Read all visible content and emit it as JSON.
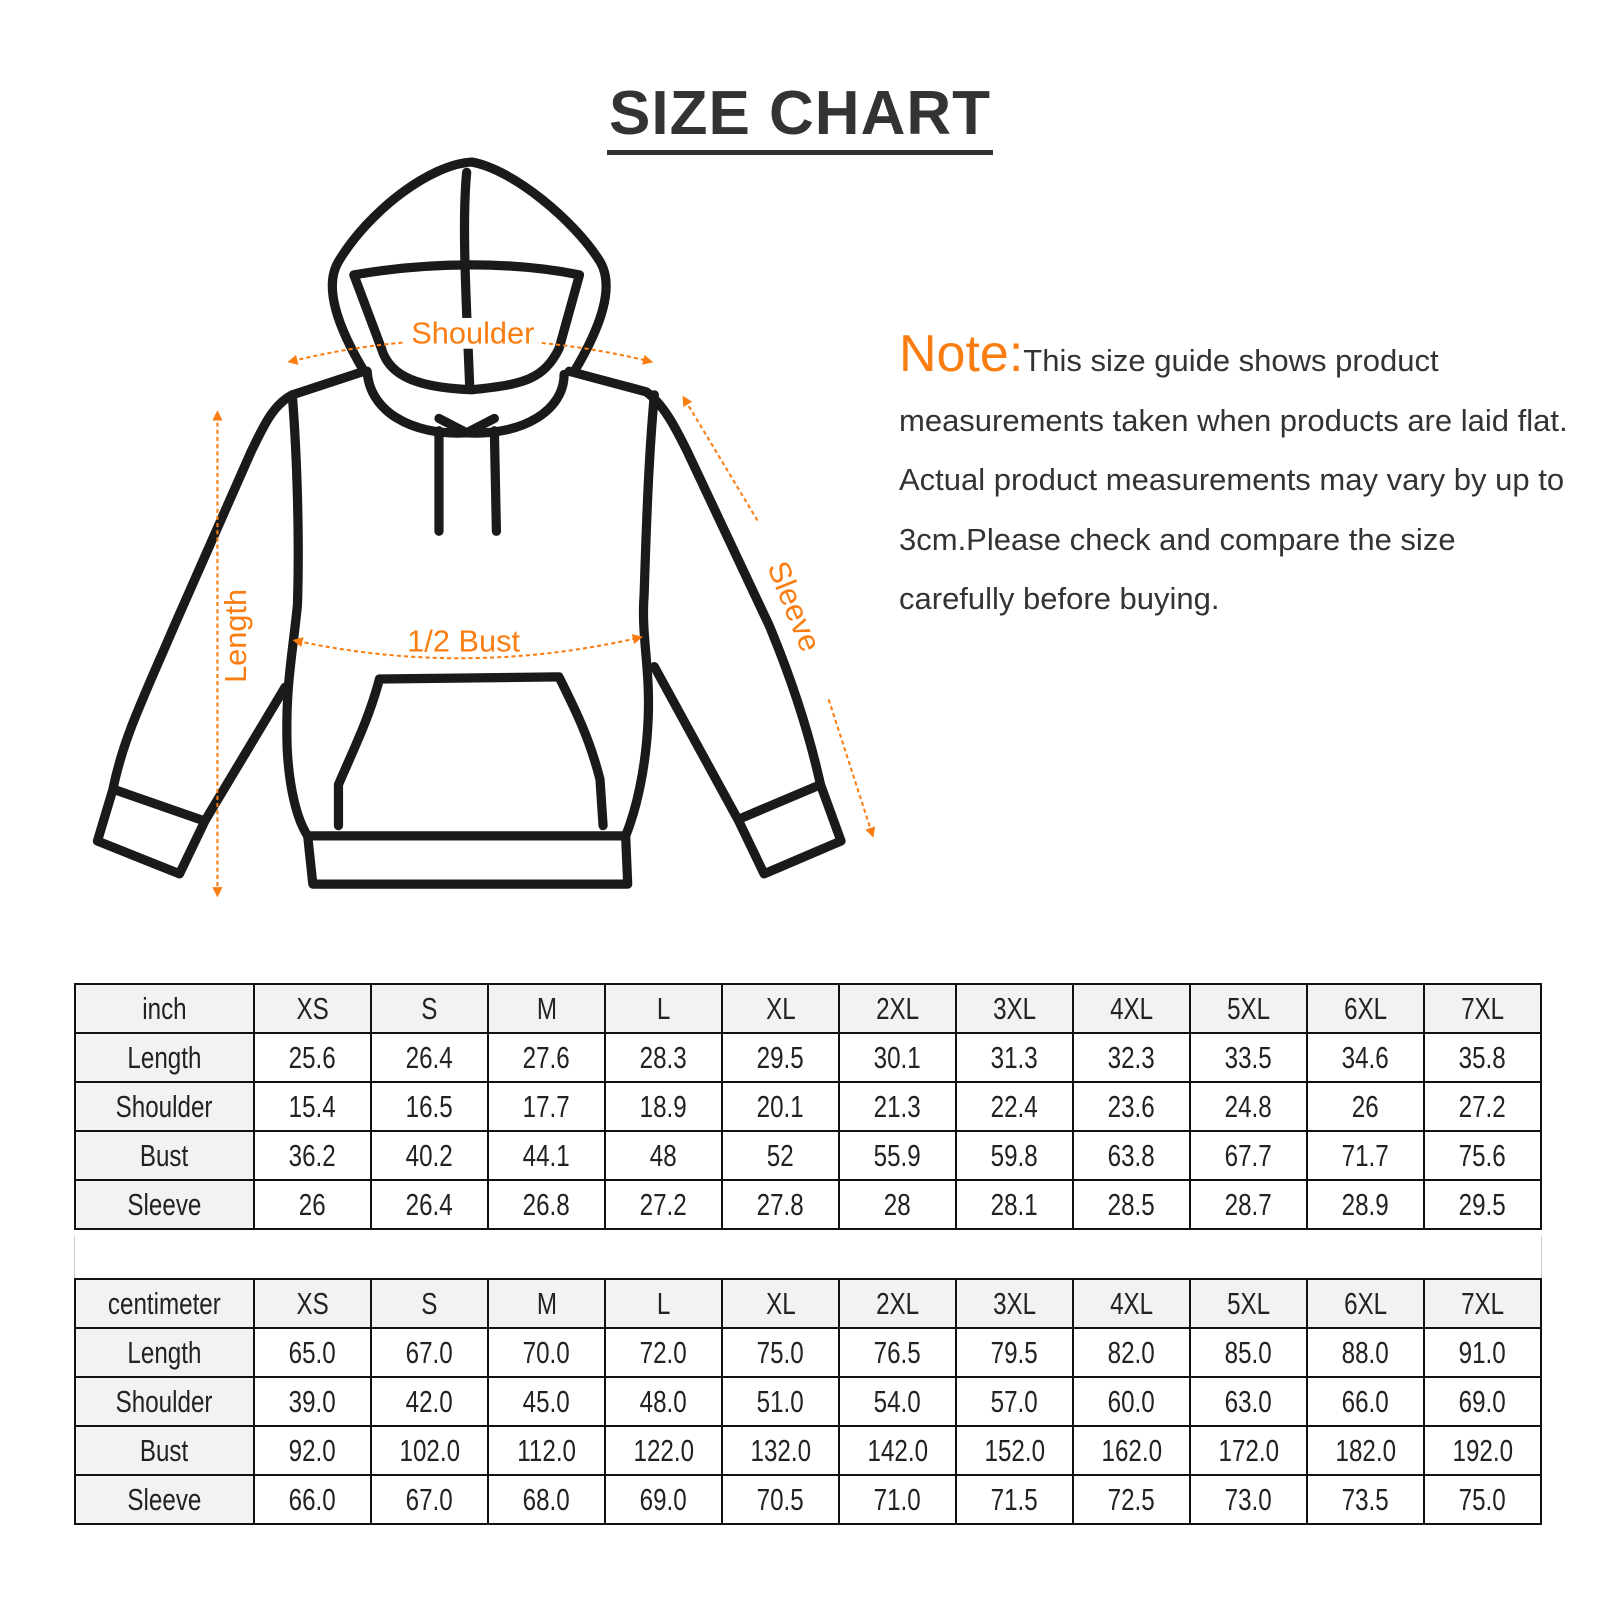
{
  "title": "SIZE CHART",
  "diagram": {
    "labels": {
      "shoulder": "Shoulder",
      "length": "Length",
      "bust": "1/2 Bust",
      "sleeve": "Sleeve"
    },
    "accent": "#fa7d12",
    "outline": "#1a1a1a"
  },
  "note": {
    "label": "Note:",
    "text": "This size guide shows product measurements taken when products are laid flat. Actual product measurements may vary by up to 3cm.Please check and compare the size carefully before buying."
  },
  "sizes": [
    "XS",
    "S",
    "M",
    "L",
    "XL",
    "2XL",
    "3XL",
    "4XL",
    "5XL",
    "6XL",
    "7XL"
  ],
  "inch_table": {
    "unit": "inch",
    "rows": [
      {
        "label": "Length",
        "values": [
          "25.6",
          "26.4",
          "27.6",
          "28.3",
          "29.5",
          "30.1",
          "31.3",
          "32.3",
          "33.5",
          "34.6",
          "35.8"
        ]
      },
      {
        "label": "Shoulder",
        "values": [
          "15.4",
          "16.5",
          "17.7",
          "18.9",
          "20.1",
          "21.3",
          "22.4",
          "23.6",
          "24.8",
          "26",
          "27.2"
        ]
      },
      {
        "label": "Bust",
        "values": [
          "36.2",
          "40.2",
          "44.1",
          "48",
          "52",
          "55.9",
          "59.8",
          "63.8",
          "67.7",
          "71.7",
          "75.6"
        ]
      },
      {
        "label": "Sleeve",
        "values": [
          "26",
          "26.4",
          "26.8",
          "27.2",
          "27.8",
          "28",
          "28.1",
          "28.5",
          "28.7",
          "28.9",
          "29.5"
        ]
      }
    ]
  },
  "cm_table": {
    "unit": "centimeter",
    "rows": [
      {
        "label": "Length",
        "values": [
          "65.0",
          "67.0",
          "70.0",
          "72.0",
          "75.0",
          "76.5",
          "79.5",
          "82.0",
          "85.0",
          "88.0",
          "91.0"
        ]
      },
      {
        "label": "Shoulder",
        "values": [
          "39.0",
          "42.0",
          "45.0",
          "48.0",
          "51.0",
          "54.0",
          "57.0",
          "60.0",
          "63.0",
          "66.0",
          "69.0"
        ]
      },
      {
        "label": "Bust",
        "values": [
          "92.0",
          "102.0",
          "112.0",
          "122.0",
          "132.0",
          "142.0",
          "152.0",
          "162.0",
          "172.0",
          "182.0",
          "192.0"
        ]
      },
      {
        "label": "Sleeve",
        "values": [
          "66.0",
          "67.0",
          "68.0",
          "69.0",
          "70.5",
          "71.0",
          "71.5",
          "72.5",
          "73.0",
          "73.5",
          "75.0"
        ]
      }
    ]
  }
}
